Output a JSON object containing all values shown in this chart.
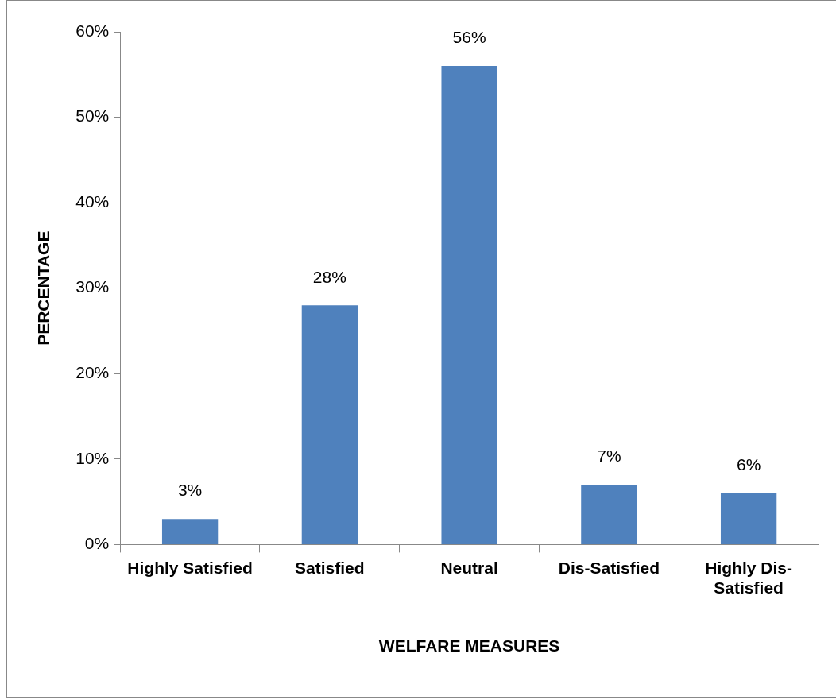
{
  "chart_data": {
    "type": "bar",
    "xlabel": "WELFARE MEASURES",
    "ylabel": "PERCENTAGE",
    "categories": [
      "Highly Satisfied",
      "Satisfied",
      "Neutral",
      "Dis-Satisfied",
      "Highly Dis-Satisfied"
    ],
    "values": [
      3,
      28,
      56,
      7,
      6
    ],
    "color": "#4f81bd",
    "value_labels": [
      "3%",
      "28%",
      "56%",
      "7%",
      "6%"
    ],
    "ylim": [
      0,
      60
    ],
    "yticks": [
      {
        "value": 0,
        "label": "0%"
      },
      {
        "value": 10,
        "label": "10%"
      },
      {
        "value": 20,
        "label": "20%"
      },
      {
        "value": 30,
        "label": "30%"
      },
      {
        "value": 40,
        "label": "40%"
      },
      {
        "value": 50,
        "label": "50%"
      },
      {
        "value": 60,
        "label": "60%"
      }
    ],
    "grid": false,
    "legend": false
  }
}
